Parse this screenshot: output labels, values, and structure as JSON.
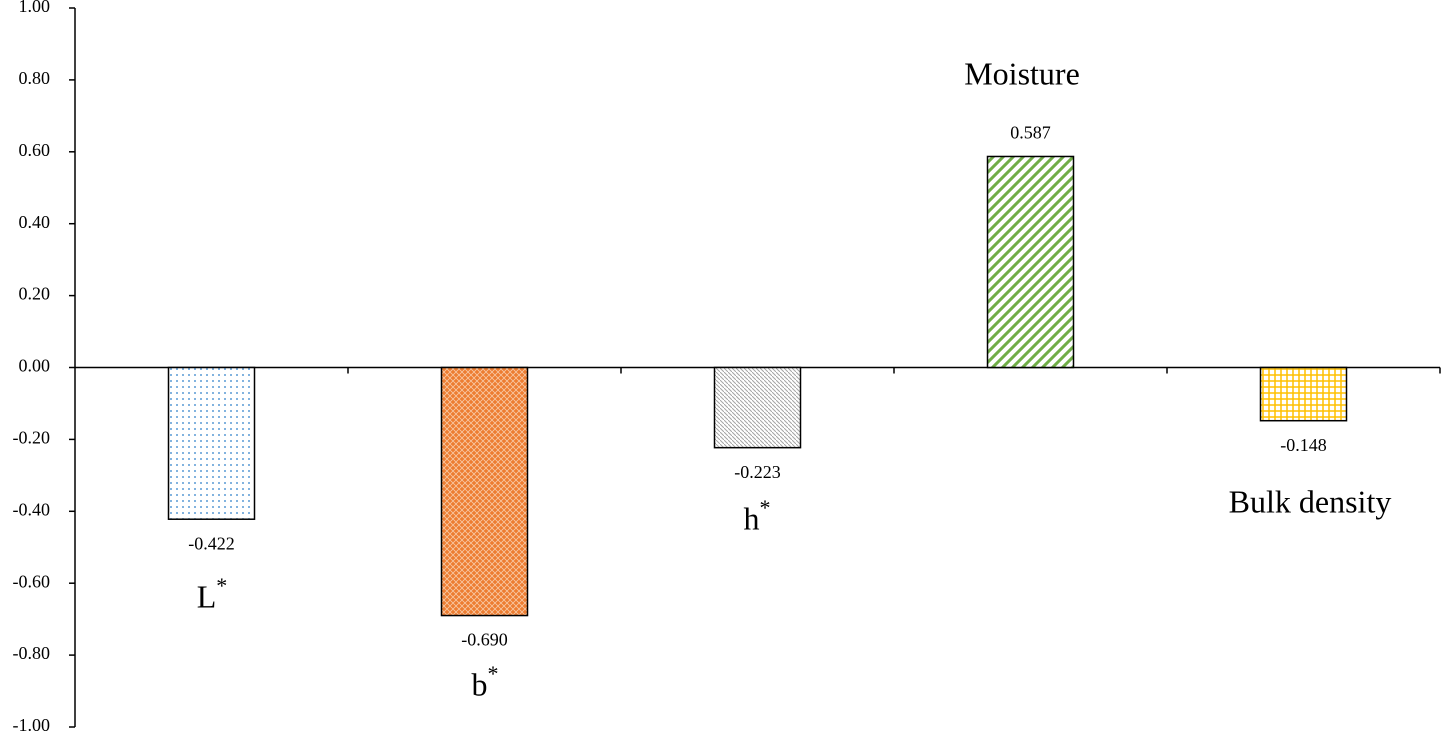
{
  "chart_data": {
    "type": "bar",
    "categories": [
      "L*",
      "b*",
      "h*",
      "Moisture",
      "Bulk density"
    ],
    "values": [
      -0.422,
      -0.69,
      -0.223,
      0.587,
      -0.148
    ],
    "value_labels": [
      "-0.422",
      "-0.690",
      "-0.223",
      "0.587",
      "-0.148"
    ],
    "colors": [
      "#5b9bd5",
      "#ed7d31",
      "#a5a5a5",
      "#70ad47",
      "#ffc000"
    ],
    "ylim": [
      -1,
      1
    ],
    "yticks": [
      {
        "value": -1,
        "label": "-1.00"
      },
      {
        "value": -0.8,
        "label": "-0.80"
      },
      {
        "value": -0.6,
        "label": "-0.60"
      },
      {
        "value": -0.4,
        "label": "-0.40"
      },
      {
        "value": -0.2,
        "label": "-0.20"
      },
      {
        "value": 0,
        "label": "0.00"
      },
      {
        "value": 0.2,
        "label": "0.20"
      },
      {
        "value": 0.4,
        "label": "0.40"
      },
      {
        "value": 0.6,
        "label": "0.60"
      },
      {
        "value": 0.8,
        "label": "0.80"
      },
      {
        "value": 1,
        "label": "1.00"
      }
    ],
    "grid": false
  }
}
